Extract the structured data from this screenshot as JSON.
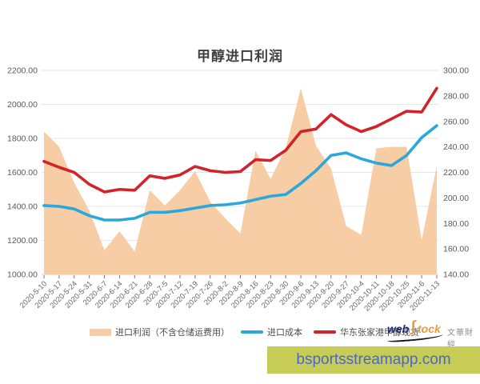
{
  "title": "甲醇进口利润",
  "chart_data": {
    "type": "area+line",
    "title": "甲醇进口利润",
    "grid": true,
    "legend_position": "bottom",
    "categories": [
      "2020-5-10",
      "2020-5-17",
      "2020-5-24",
      "2020-5-31",
      "2020-6-7",
      "2020-6-14",
      "2020-6-21",
      "2020-6-28",
      "2020-7-5",
      "2020-7-12",
      "2020-7-19",
      "2020-7-26",
      "2020-8-2",
      "2020-8-9",
      "2020-8-16",
      "2020-8-23",
      "2020-8-30",
      "2020-9-6",
      "2020-9-13",
      "2020-9-20",
      "2020-9-27",
      "2020-10-4",
      "2020-10-11",
      "2020-10-18",
      "2020-10-25",
      "2020-11-6",
      "2020-11-13"
    ],
    "left_axis": {
      "min": 1000,
      "max": 2200,
      "step": 200,
      "tick_labels": [
        "2200.00",
        "2000.00",
        "1800.00",
        "1600.00",
        "1400.00",
        "1200.00",
        "1000.00"
      ]
    },
    "right_axis": {
      "min": 140,
      "max": 300,
      "step": 20,
      "tick_labels": [
        "300.00",
        "280.00",
        "260.00",
        "240.00",
        "220.00",
        "200.00",
        "180.00",
        "160.00",
        "140.00"
      ]
    },
    "series": [
      {
        "name": "进口利润（不含仓储运费用）",
        "type": "area",
        "axis": "right",
        "color": "#F6CDA4",
        "values": [
          252,
          240,
          212,
          190,
          159,
          174,
          158,
          206,
          194,
          206,
          221,
          197,
          184,
          172,
          237,
          215,
          239,
          286,
          241,
          223,
          178,
          171,
          239,
          240,
          240,
          167,
          225
        ]
      },
      {
        "name": "进口成本",
        "type": "line",
        "axis": "left",
        "color": "#2BA7DB",
        "values": [
          1405,
          1400,
          1385,
          1345,
          1320,
          1320,
          1330,
          1365,
          1365,
          1375,
          1390,
          1405,
          1410,
          1420,
          1440,
          1460,
          1470,
          1535,
          1610,
          1700,
          1715,
          1680,
          1655,
          1640,
          1700,
          1805,
          1875
        ]
      },
      {
        "name": "华东张家港甲醇现货",
        "type": "line",
        "axis": "left",
        "color": "#D2232A",
        "values": [
          1665,
          1630,
          1600,
          1530,
          1485,
          1500,
          1495,
          1580,
          1565,
          1585,
          1635,
          1610,
          1600,
          1605,
          1675,
          1670,
          1730,
          1840,
          1855,
          1940,
          1880,
          1840,
          1870,
          1915,
          1960,
          1955,
          2095
        ]
      }
    ]
  },
  "legend": {
    "item1": "进口利润（不含仓储运费用）",
    "item2": "进口成本",
    "item3": "华东张家港甲醇现货"
  },
  "watermark": {
    "web": "web",
    "swoosh_icon": "∫",
    "tock": "tock",
    "company": "文華財經"
  },
  "banner": {
    "text": "bsportsstreamapp.com",
    "bg": "#C6CC55",
    "fg": "#4767CF"
  }
}
